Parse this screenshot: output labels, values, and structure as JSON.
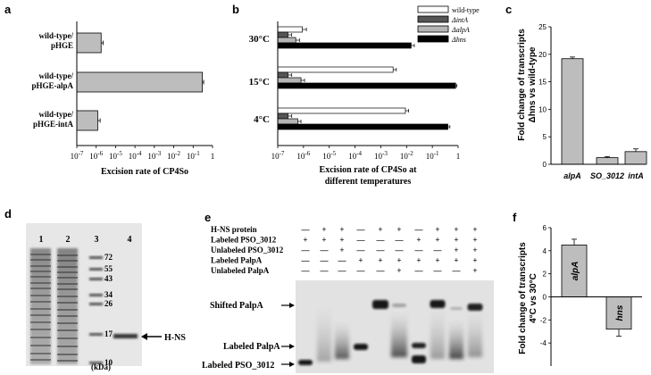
{
  "panels": {
    "a": "a",
    "b": "b",
    "c": "c",
    "d": "d",
    "e": "e",
    "f": "f"
  },
  "log_ticks": [
    "10-7",
    "10-6",
    "10-5",
    "10-4",
    "10-3",
    "10-2",
    "10-1",
    "1"
  ],
  "chart_data": [
    {
      "panel": "a",
      "type": "bar",
      "orientation": "horizontal",
      "xscale": "log",
      "xlim": [
        1e-07,
        1
      ],
      "xlabel": "Excision rate of CP4So",
      "categories": [
        "wild-type/ pHGE",
        "wild-type/ pHGE-alpA",
        "wild-type/ pHGE-intA"
      ],
      "category_lines": [
        [
          "wild-type/",
          "pHGE"
        ],
        [
          "wild-type/",
          "pHGE-alpA"
        ],
        [
          "wild-type/",
          "pHGE-intA"
        ]
      ],
      "values": [
        1.8e-06,
        0.3,
        1.2e-06
      ],
      "errors": [
        5e-07,
        0.05,
        4e-07
      ],
      "color": "#bdbdbd"
    },
    {
      "panel": "b",
      "type": "bar",
      "orientation": "horizontal",
      "xscale": "log",
      "xlim": [
        1e-07,
        1
      ],
      "xlabel_lines": [
        "Excision rate of CP4So at",
        "different temperatures"
      ],
      "categories": [
        "30°C",
        "15°C",
        "4°C"
      ],
      "series": [
        {
          "name": "wild-type",
          "color": "#ffffff",
          "values": [
            9e-07,
            0.003,
            0.009
          ],
          "errors": [
            4e-07,
            0.001,
            0.003
          ]
        },
        {
          "name": "ΔintA",
          "color": "#555555",
          "values": [
            2.5e-07,
            2.5e-07,
            2.5e-07
          ],
          "errors": [
            1e-07,
            1e-07,
            1e-07
          ]
        },
        {
          "name": "ΔalpA",
          "color": "#b5b5b5",
          "values": [
            5e-07,
            8e-07,
            6e-07
          ],
          "errors": [
            2e-07,
            3e-07,
            2e-07
          ]
        },
        {
          "name": "Δhns",
          "color": "#000000",
          "values": [
            0.015,
            0.8,
            0.4
          ],
          "errors": [
            0.005,
            0.1,
            0.08
          ]
        }
      ]
    },
    {
      "panel": "c",
      "type": "bar",
      "categories": [
        "alpA",
        "SO_3012",
        "intA"
      ],
      "values": [
        19.2,
        1.2,
        2.3
      ],
      "errors": [
        0.3,
        0.2,
        0.5
      ],
      "ylim": [
        0,
        25
      ],
      "yticks": [
        "0",
        "5",
        "10",
        "15",
        "20",
        "25"
      ],
      "ylabel_lines": [
        "Fold change of transcripts",
        "Δhns vs wild-type"
      ],
      "color": "#bdbdbd"
    },
    {
      "panel": "f",
      "type": "bar",
      "categories": [
        "alpA",
        "hns"
      ],
      "values": [
        4.5,
        -2.8
      ],
      "errors": [
        0.5,
        0.6
      ],
      "ylim": [
        -6,
        6
      ],
      "yticks": [
        "-4",
        "-2",
        "0",
        "2",
        "4",
        "6"
      ],
      "ylabel_lines": [
        "Fold change of transcripts",
        "4°C vs 30°C"
      ],
      "color": "#bdbdbd"
    }
  ],
  "gel_d": {
    "lanes": [
      "1",
      "2",
      "3",
      "4"
    ],
    "markers": [
      "72",
      "55",
      "43",
      "34",
      "26",
      "17",
      "10"
    ],
    "unit": "(kDa)",
    "band_label": "H-NS"
  },
  "gel_e": {
    "rows": [
      {
        "label": "H-NS protein",
        "marks": [
          "—",
          "+",
          "+",
          "—",
          "+",
          "+",
          "—",
          "+",
          "+",
          "+"
        ]
      },
      {
        "label": "Labeled PSO_3012",
        "marks": [
          "+",
          "+",
          "+",
          "—",
          "—",
          "—",
          "+",
          "+",
          "+",
          "+"
        ]
      },
      {
        "label": "Unlabeled PSO_3012",
        "marks": [
          "—",
          "—",
          "+",
          "—",
          "—",
          "—",
          "—",
          "—",
          "+",
          "+"
        ]
      },
      {
        "label": "Labeled PalpA",
        "marks": [
          "—",
          "—",
          "—",
          "+",
          "+",
          "+",
          "+",
          "+",
          "+",
          "+"
        ]
      },
      {
        "label": "Unlabeled PalpA",
        "marks": [
          "—",
          "—",
          "—",
          "—",
          "—",
          "+",
          "—",
          "—",
          "—",
          "+"
        ]
      }
    ],
    "lane_numbers": [
      "1",
      "2",
      "3",
      "4",
      "5",
      "6",
      "7",
      "8",
      "9",
      "10"
    ],
    "arrow_labels": {
      "shifted": "Shifted PalpA",
      "labeled_alpA": "Labeled PalpA",
      "labeled_so3012": "Labeled PSO_3012"
    }
  }
}
